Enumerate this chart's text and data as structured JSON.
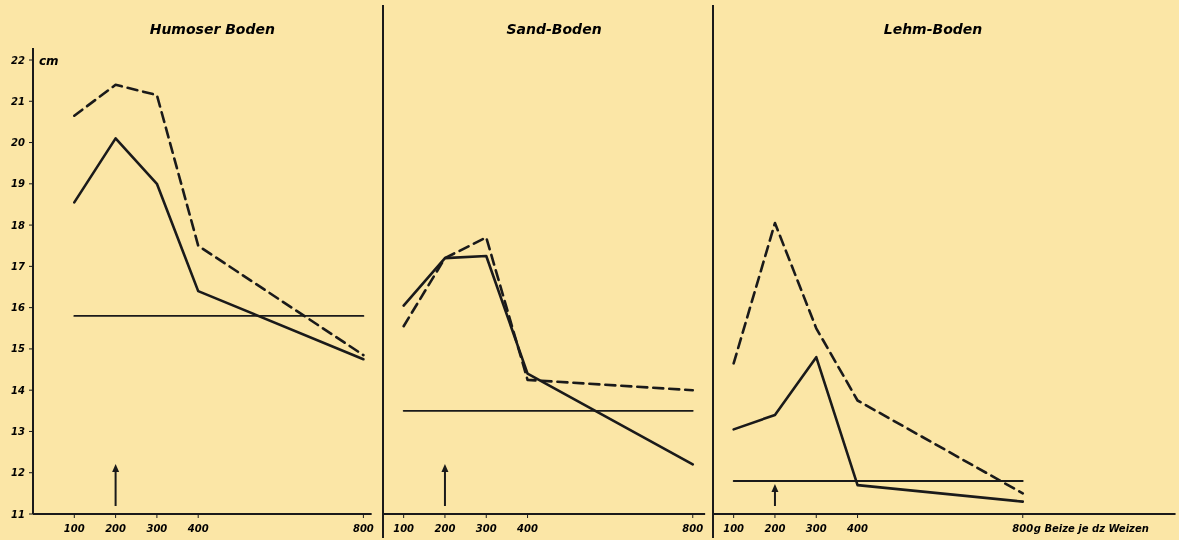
{
  "chart_data": [
    {
      "type": "line",
      "title": "Humoser Boden",
      "ylabel": "cm",
      "x": [
        100,
        200,
        300,
        400,
        800
      ],
      "xlim": [
        0,
        820
      ],
      "xticks": [
        100,
        200,
        300,
        400,
        800
      ],
      "ylim": [
        11,
        22
      ],
      "yticks": [
        11,
        12,
        13,
        14,
        15,
        16,
        17,
        18,
        19,
        20,
        21,
        22
      ],
      "grid": false,
      "marker": "none",
      "series": [
        {
          "color": "#1a1a1a",
          "line_style": "solid",
          "values": [
            18.55,
            20.1,
            19.0,
            16.4,
            14.75
          ]
        },
        {
          "color": "#1a1a1a",
          "line_style": "dashed",
          "values": [
            20.65,
            21.4,
            21.15,
            17.5,
            14.85
          ]
        },
        {
          "color": "#1a1a1a",
          "line_style": "solid",
          "values": [
            15.8,
            15.8,
            15.8,
            15.8,
            15.8
          ]
        }
      ]
    },
    {
      "type": "line",
      "title": "Sand-Boden",
      "x": [
        100,
        200,
        300,
        400,
        800
      ],
      "xlim": [
        50,
        830
      ],
      "xticks": [
        100,
        200,
        300,
        400,
        800
      ],
      "ylim": [
        11,
        22
      ],
      "tick_labels": "x",
      "grid": false,
      "marker": "none",
      "series": [
        {
          "color": "#1a1a1a",
          "line_style": "solid",
          "values": [
            16.05,
            17.2,
            17.25,
            14.4,
            12.2
          ]
        },
        {
          "color": "#1a1a1a",
          "line_style": "dashed",
          "values": [
            15.55,
            17.2,
            17.7,
            14.25,
            14.0
          ]
        },
        {
          "color": "#1a1a1a",
          "line_style": "solid",
          "values": [
            13.5,
            13.5,
            13.5,
            13.5,
            13.5
          ]
        }
      ]
    },
    {
      "type": "line",
      "title": "Lehm-Boden",
      "xlabel": "g Beize je dz Weizen",
      "x": [
        100,
        200,
        300,
        400,
        800
      ],
      "xlim": [
        50,
        1170
      ],
      "xticks": [
        100,
        200,
        300,
        400,
        800
      ],
      "ylim": [
        11,
        22
      ],
      "tick_labels": "x",
      "grid": false,
      "marker": "none",
      "series": [
        {
          "color": "#1a1a1a",
          "line_style": "solid",
          "values": [
            13.05,
            13.4,
            14.8,
            11.7,
            11.3
          ]
        },
        {
          "color": "#1a1a1a",
          "line_style": "dashed",
          "values": [
            14.65,
            18.05,
            15.5,
            13.75,
            11.5
          ]
        },
        {
          "color": "#1a1a1a",
          "line_style": "solid",
          "values": [
            11.8,
            11.8,
            11.8,
            11.8,
            11.8
          ]
        }
      ]
    }
  ]
}
